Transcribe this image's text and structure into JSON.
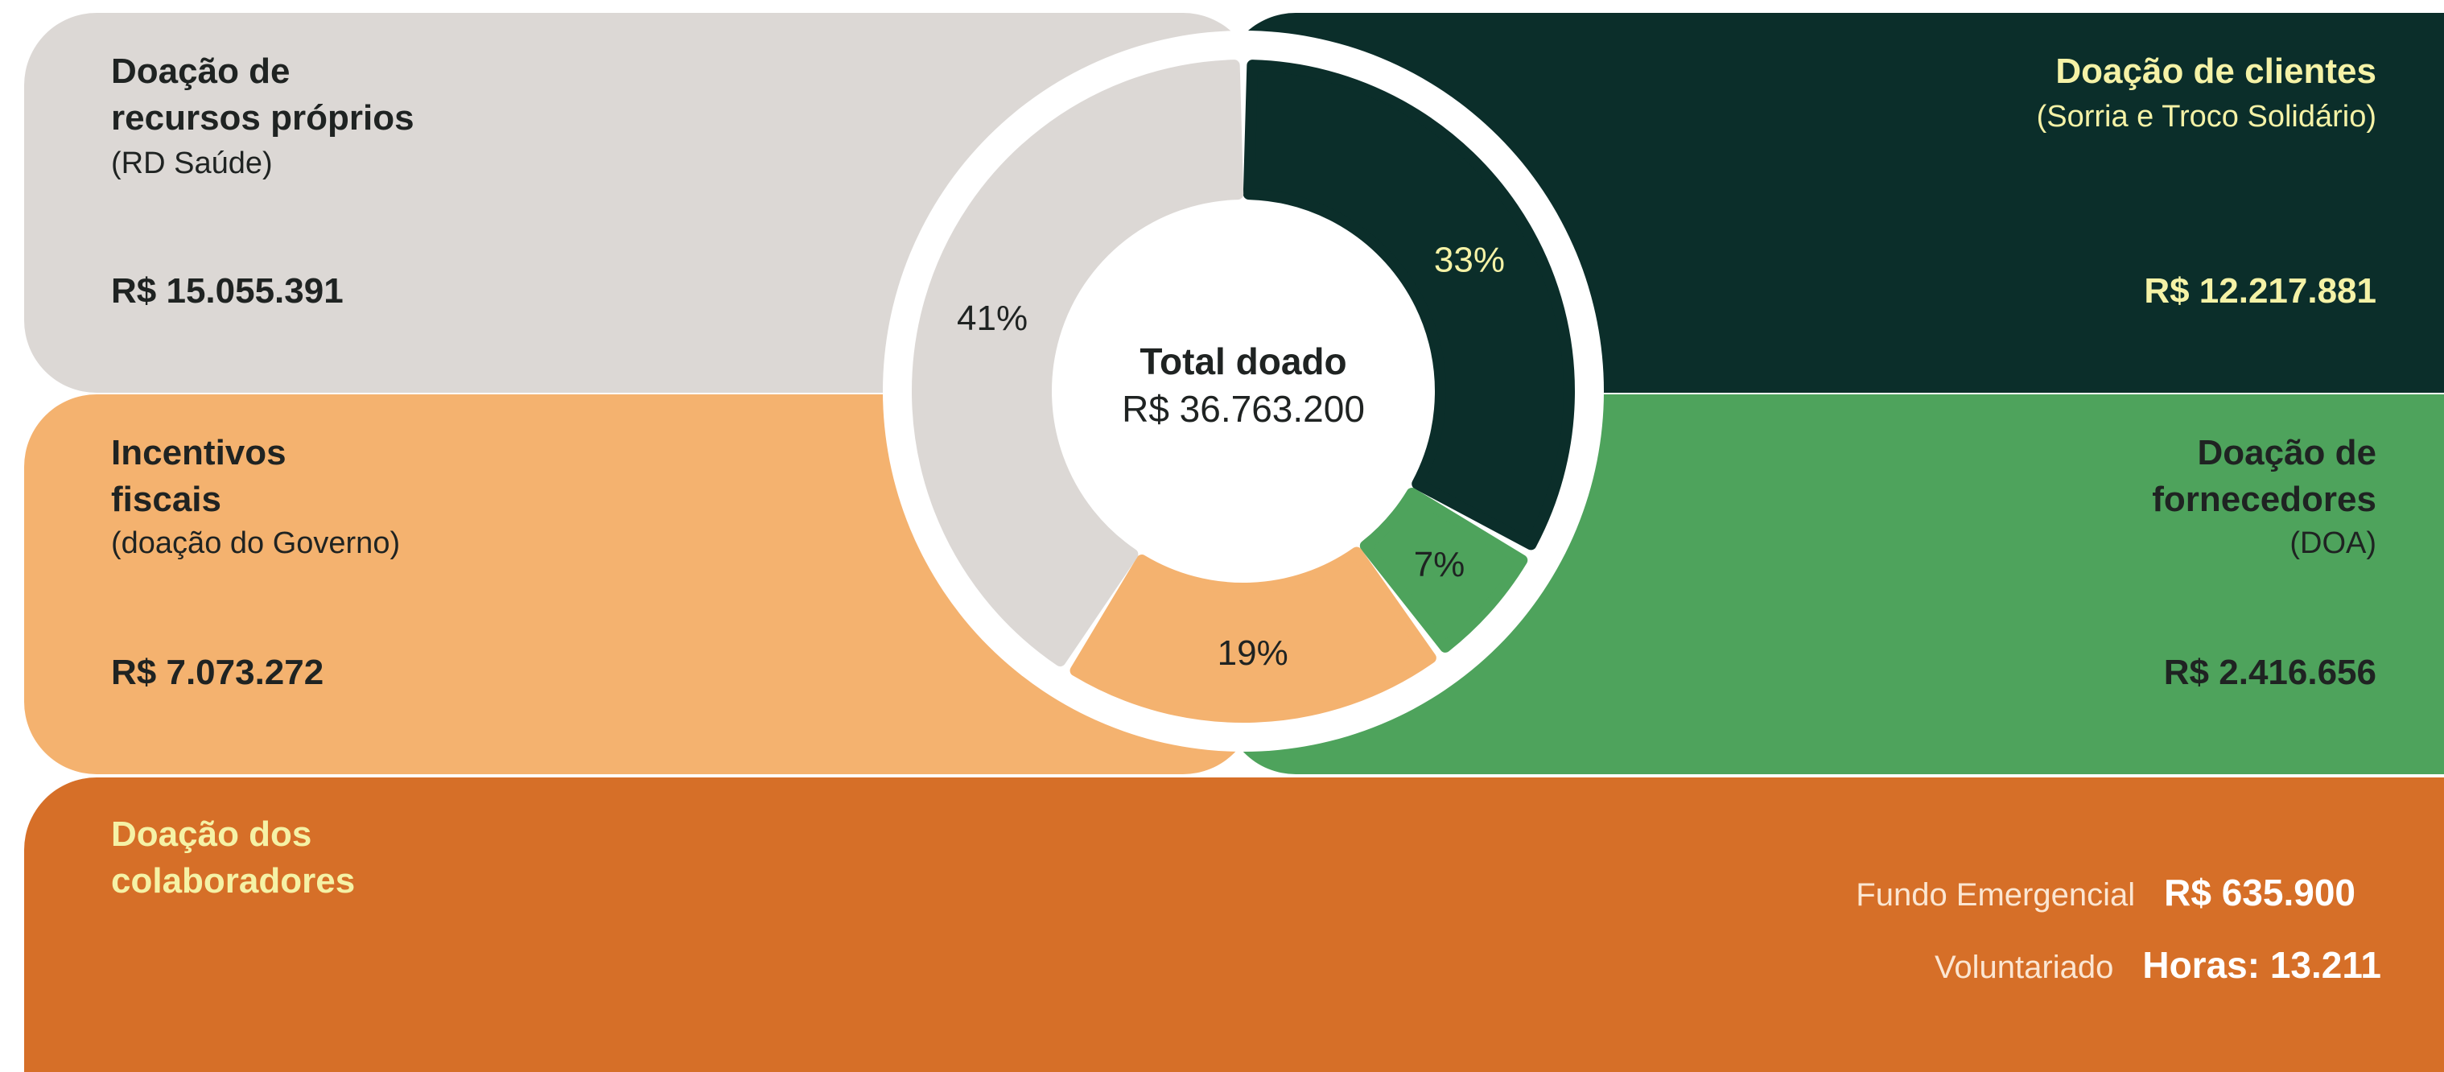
{
  "chart_data": {
    "type": "pie",
    "style": "donut",
    "center": {
      "title": "Total doado",
      "value": "R$ 36.763.200"
    },
    "categories": [
      "Doação de recursos próprios",
      "Doação de clientes",
      "Doação de fornecedores",
      "Incentivos fiscais"
    ],
    "values": [
      15055391,
      12217881,
      2416656,
      7073272
    ],
    "percent_labels": [
      "41%",
      "33%",
      "7%",
      "19%"
    ],
    "colors": [
      "#dcd8d5",
      "#0b2e2a",
      "#4ea35c",
      "#f4b26f"
    ]
  },
  "panels": {
    "recursos": {
      "title_line1": "Doação de",
      "title_line2": "recursos próprios",
      "sub": "(RD Saúde)",
      "amount": "R$ 15.055.391"
    },
    "clientes": {
      "title": "Doação de clientes",
      "sub": "(Sorria e Troco Solidário)",
      "amount": "R$ 12.217.881"
    },
    "incentivos": {
      "title_line1": "Incentivos",
      "title_line2": "fiscais",
      "sub": "(doação do Governo)",
      "amount": "R$ 7.073.272"
    },
    "fornecedores": {
      "title_line1": "Doação de",
      "title_line2": "fornecedores",
      "sub": "(DOA)",
      "amount": "R$ 2.416.656"
    },
    "colaboradores": {
      "title_line1": "Doação dos",
      "title_line2": "colaboradores",
      "rows": [
        {
          "label": "Fundo Emergencial",
          "value": "R$ 635.900"
        },
        {
          "label": "Voluntariado",
          "value": "Horas: 13.211"
        }
      ]
    }
  }
}
